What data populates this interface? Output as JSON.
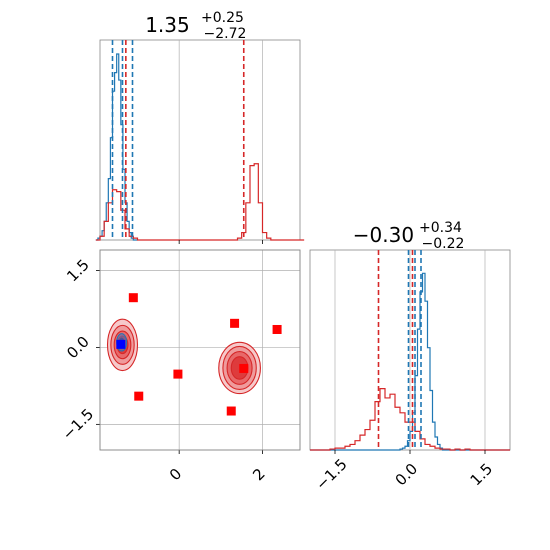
{
  "chart_data": {
    "type": "corner",
    "colors": {
      "red": "#d62728",
      "blue": "#1f77b4",
      "marker": "#ff0000",
      "true_point": "#0000ff",
      "grid": "#b0b0b0"
    },
    "parameters": [
      {
        "title": {
          "main": "1.35",
          "sup": "+0.25",
          "sub": "−2.72"
        },
        "range": [
          -1.9,
          2.9
        ],
        "ticks": [
          {
            "v": 0,
            "label": "0"
          },
          {
            "v": 2,
            "label": "2"
          }
        ],
        "hist_red": {
          "bin_start": -2.0,
          "bin_width": 0.1,
          "counts": [
            0,
            0.02,
            0.1,
            0.2,
            0.27,
            0.26,
            0.16,
            0.06,
            0.02,
            0.01,
            0,
            0,
            0,
            0,
            0,
            0,
            0,
            0,
            0,
            0,
            0,
            0,
            0,
            0,
            0,
            0,
            0,
            0,
            0,
            0,
            0,
            0,
            0,
            0,
            0.01,
            0.04,
            0.2,
            0.4,
            0.41,
            0.2,
            0.04,
            0.01,
            0,
            0,
            0,
            0,
            0,
            0,
            0,
            0
          ]
        },
        "hist_blue": {
          "bin_start": -2.0,
          "bin_width": 0.05,
          "counts": [
            0,
            0.01,
            0.02,
            0.05,
            0.1,
            0.2,
            0.33,
            0.55,
            0.8,
            0.9,
            1.0,
            0.86,
            0.62,
            0.38,
            0.2,
            0.1,
            0.04,
            0.01,
            0,
            0
          ]
        },
        "lines_red": [
          -1.28,
          1.55
        ],
        "lines_blue": [
          -1.6,
          -1.36,
          -1.12
        ],
        "line_true": -1.36
      },
      {
        "title": {
          "main": "−0.30",
          "sup": "+0.34",
          "sub": "−0.22"
        },
        "range": [
          -2.0,
          2.0
        ],
        "ticks": [
          {
            "v": -1.5,
            "label": "−1.5"
          },
          {
            "v": 0,
            "label": "0.0"
          },
          {
            "v": 1.5,
            "label": "1.5"
          }
        ],
        "hist_red": {
          "bin_start": -2.0,
          "bin_width": 0.1,
          "counts": [
            0,
            0,
            0,
            0,
            0.005,
            0.01,
            0.01,
            0.02,
            0.03,
            0.05,
            0.08,
            0.11,
            0.16,
            0.26,
            0.33,
            0.28,
            0.3,
            0.23,
            0.2,
            0.15,
            0.15,
            0.1,
            0.06,
            0.03,
            0.02,
            0.01,
            0.005,
            0.005,
            0,
            0.005,
            0,
            0.005,
            0,
            0,
            0,
            0,
            0,
            0,
            0,
            0
          ]
        },
        "hist_blue": {
          "bin_start": -2.0,
          "bin_width": 0.05,
          "counts": [
            0,
            0,
            0,
            0,
            0,
            0,
            0,
            0,
            0,
            0,
            0,
            0,
            0,
            0,
            0,
            0,
            0,
            0,
            0,
            0,
            0,
            0,
            0,
            0,
            0,
            0,
            0,
            0,
            0,
            0,
            0,
            0,
            0,
            0,
            0,
            0,
            0.005,
            0.01,
            0.02,
            0.05,
            0.1,
            0.2,
            0.4,
            0.65,
            0.85,
            0.95,
            0.8,
            0.55,
            0.32,
            0.15,
            0.07,
            0.03,
            0.01,
            0,
            0,
            0,
            0,
            0,
            0,
            0,
            0,
            0,
            0,
            0,
            0,
            0,
            0,
            0,
            0,
            0,
            0,
            0,
            0,
            0,
            0,
            0,
            0,
            0,
            0,
            0
          ]
        },
        "lines_red": [
          -0.63,
          0.05
        ],
        "lines_blue": [
          -0.03,
          0.1,
          0.22
        ],
        "line_true": 0.1
      }
    ],
    "joint": {
      "xrange": [
        -1.9,
        2.9
      ],
      "yrange": [
        -2.0,
        1.9
      ],
      "xticks": [
        {
          "v": 0,
          "label": "0"
        },
        {
          "v": 2,
          "label": "2"
        }
      ],
      "yticks": [
        {
          "v": -1.5,
          "label": "−1.5"
        },
        {
          "v": 0,
          "label": "0.0"
        },
        {
          "v": 1.5,
          "label": "1.5"
        }
      ],
      "modes": [
        {
          "x": -1.36,
          "y": 0.05,
          "rx": [
            0.36,
            0.28,
            0.2,
            0.13
          ],
          "ry": [
            0.5,
            0.38,
            0.27,
            0.17
          ]
        },
        {
          "x": 1.45,
          "y": -0.4,
          "rx": [
            0.5,
            0.4,
            0.3,
            0.2
          ],
          "ry": [
            0.5,
            0.42,
            0.32,
            0.22
          ]
        }
      ],
      "blue_cluster": {
        "x": -1.38,
        "y": 0.1,
        "rx": 0.12,
        "ry": 0.17
      },
      "red_points": [
        {
          "x": -1.1,
          "y": 0.97
        },
        {
          "x": 1.33,
          "y": 0.47
        },
        {
          "x": 2.35,
          "y": 0.35
        },
        {
          "x": -0.03,
          "y": -0.52
        },
        {
          "x": -0.97,
          "y": -0.95
        },
        {
          "x": 1.55,
          "y": -0.41
        },
        {
          "x": 1.25,
          "y": -1.24
        }
      ],
      "true_point": {
        "x": -1.4,
        "y": 0.06
      }
    }
  }
}
